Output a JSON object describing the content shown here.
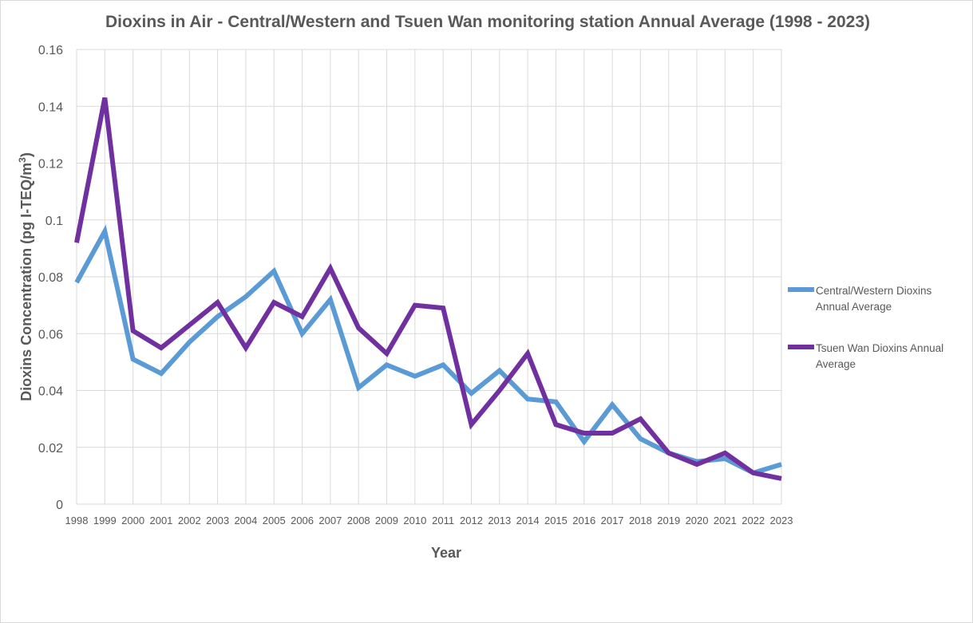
{
  "chart_data": {
    "type": "line",
    "title": "Dioxins in Air - Central/Western and Tsuen Wan monitoring station Annual Average (1998 - 2023)",
    "xlabel": "Year",
    "ylabel_main": "Dioxins Concentration (pg I-TEQ/m",
    "ylabel_sup": "3",
    "ylabel_close": ")",
    "ylim": [
      0,
      0.16
    ],
    "yticks": [
      "0",
      "0.02",
      "0.04",
      "0.06",
      "0.08",
      "0.1",
      "0.12",
      "0.14",
      "0.16"
    ],
    "grid": true,
    "legend_position": "right",
    "categories": [
      "1998",
      "1999",
      "2000",
      "2001",
      "2002",
      "2003",
      "2004",
      "2005",
      "2006",
      "2007",
      "2008",
      "2009",
      "2010",
      "2011",
      "2012",
      "2013",
      "2014",
      "2015",
      "2016",
      "2017",
      "2018",
      "2019",
      "2020",
      "2021",
      "2022",
      "2023"
    ],
    "series": [
      {
        "name": "Central/Western Dioxins Annual Average",
        "legend_lines": [
          "Central/Western Dioxins",
          "Annual Average"
        ],
        "color": "#5b9bd5",
        "values": [
          0.078,
          0.096,
          0.051,
          0.046,
          0.057,
          0.066,
          0.073,
          0.082,
          0.06,
          0.072,
          0.041,
          0.049,
          0.045,
          0.049,
          0.039,
          0.047,
          0.037,
          0.036,
          0.022,
          0.035,
          0.023,
          0.018,
          0.015,
          0.016,
          0.011,
          0.014
        ]
      },
      {
        "name": "Tsuen Wan Dioxins Annual Average",
        "legend_lines": [
          "Tsuen Wan Dioxins Annual",
          "Average"
        ],
        "color": "#7030a0",
        "values": [
          0.092,
          0.143,
          0.061,
          0.055,
          0.063,
          0.071,
          0.055,
          0.071,
          0.066,
          0.083,
          0.062,
          0.053,
          0.07,
          0.069,
          0.028,
          0.04,
          0.053,
          0.028,
          0.025,
          0.025,
          0.03,
          0.018,
          0.014,
          0.018,
          0.011,
          0.009
        ]
      }
    ]
  }
}
